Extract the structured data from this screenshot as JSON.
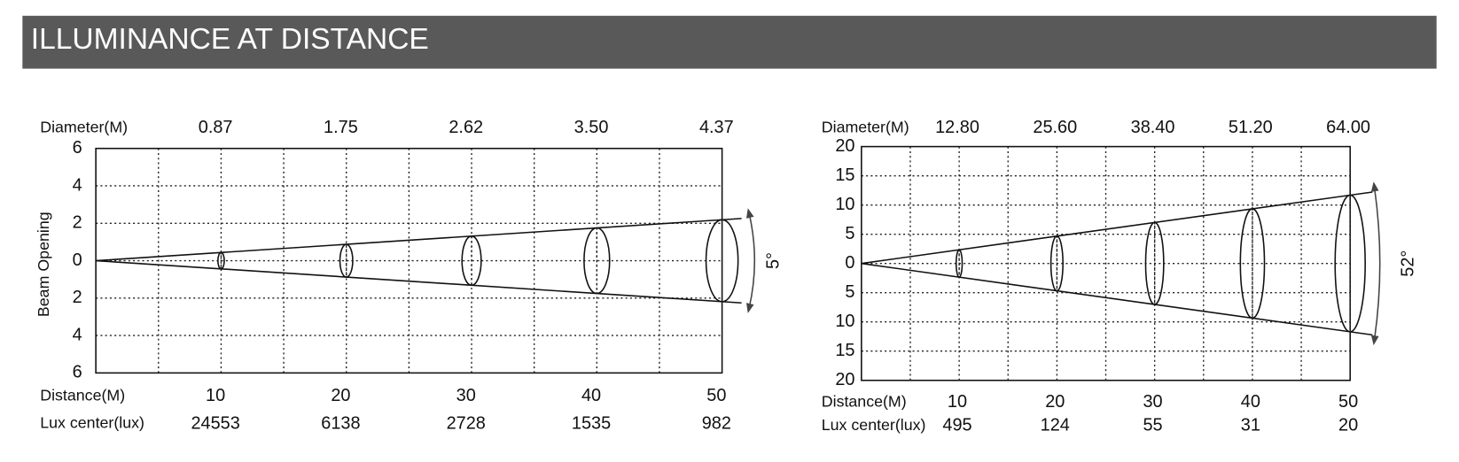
{
  "header": {
    "title": "ILLUMINANCE AT DISTANCE"
  },
  "diagrams": [
    {
      "diameter_label": "Diameter(M)",
      "diameters": [
        "0.87",
        "1.75",
        "2.62",
        "3.50",
        "4.37"
      ],
      "axis_label": "Beam Opening",
      "axis_ticks": [
        "6",
        "4",
        "2",
        "0",
        "2",
        "4",
        "6"
      ],
      "distance_label": "Distance(M)",
      "distances": [
        "10",
        "20",
        "30",
        "40",
        "50"
      ],
      "lux_label": "Lux center(lux)",
      "lux": [
        "24553",
        "6138",
        "2728",
        "1535",
        "982"
      ],
      "angle": "5°"
    },
    {
      "diameter_label": "Diameter(M)",
      "diameters": [
        "12.80",
        "25.60",
        "38.40",
        "51.20",
        "64.00"
      ],
      "axis_ticks": [
        "20",
        "15",
        "10",
        "5",
        "0",
        "5",
        "10",
        "15",
        "20"
      ],
      "distance_label": "Distance(M)",
      "distances": [
        "10",
        "20",
        "30",
        "40",
        "50"
      ],
      "lux_label": "Lux center(lux)",
      "lux": [
        "495",
        "124",
        "55",
        "31",
        "20"
      ],
      "angle": "52°"
    }
  ]
}
